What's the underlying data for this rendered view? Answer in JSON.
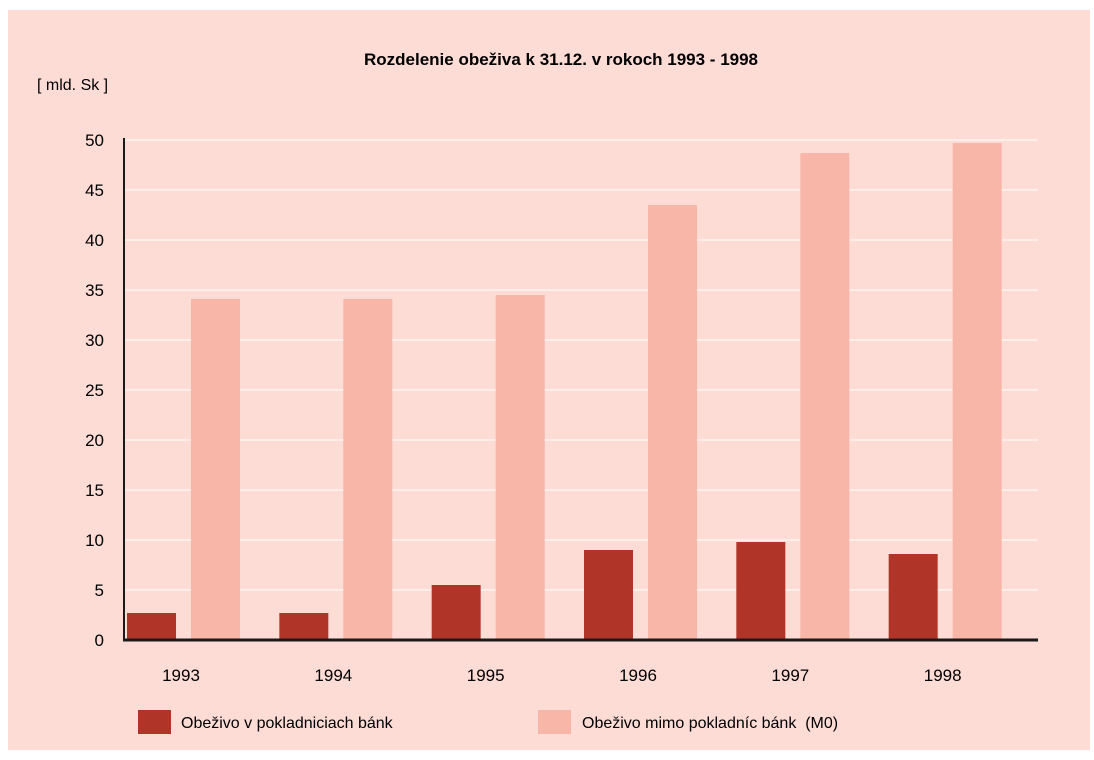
{
  "chart_data": {
    "type": "bar",
    "title": "Rozdelenie obeživa k 31.12. v rokoch 1993 - 1998",
    "unit_label": "[ mld. Sk ]",
    "xlabel": "",
    "ylabel": "[ mld. Sk ]",
    "categories": [
      "1993",
      "1994",
      "1995",
      "1996",
      "1997",
      "1998"
    ],
    "y_ticks": [
      "0",
      "5",
      "10",
      "15",
      "20",
      "25",
      "30",
      "35",
      "40",
      "45",
      "50"
    ],
    "ylim": [
      0,
      50
    ],
    "grid": true,
    "legend_position": "bottom",
    "series": [
      {
        "name": "Obeživo v pokladniciach bánk",
        "color": "#b03428",
        "values": [
          2.7,
          2.7,
          5.5,
          9.0,
          9.8,
          8.6
        ]
      },
      {
        "name": "Obeživo mimo pokladníc bánk  (M0)",
        "color": "#f8b6a8",
        "values": [
          34.1,
          34.1,
          34.5,
          43.5,
          48.7,
          49.7
        ]
      }
    ]
  }
}
